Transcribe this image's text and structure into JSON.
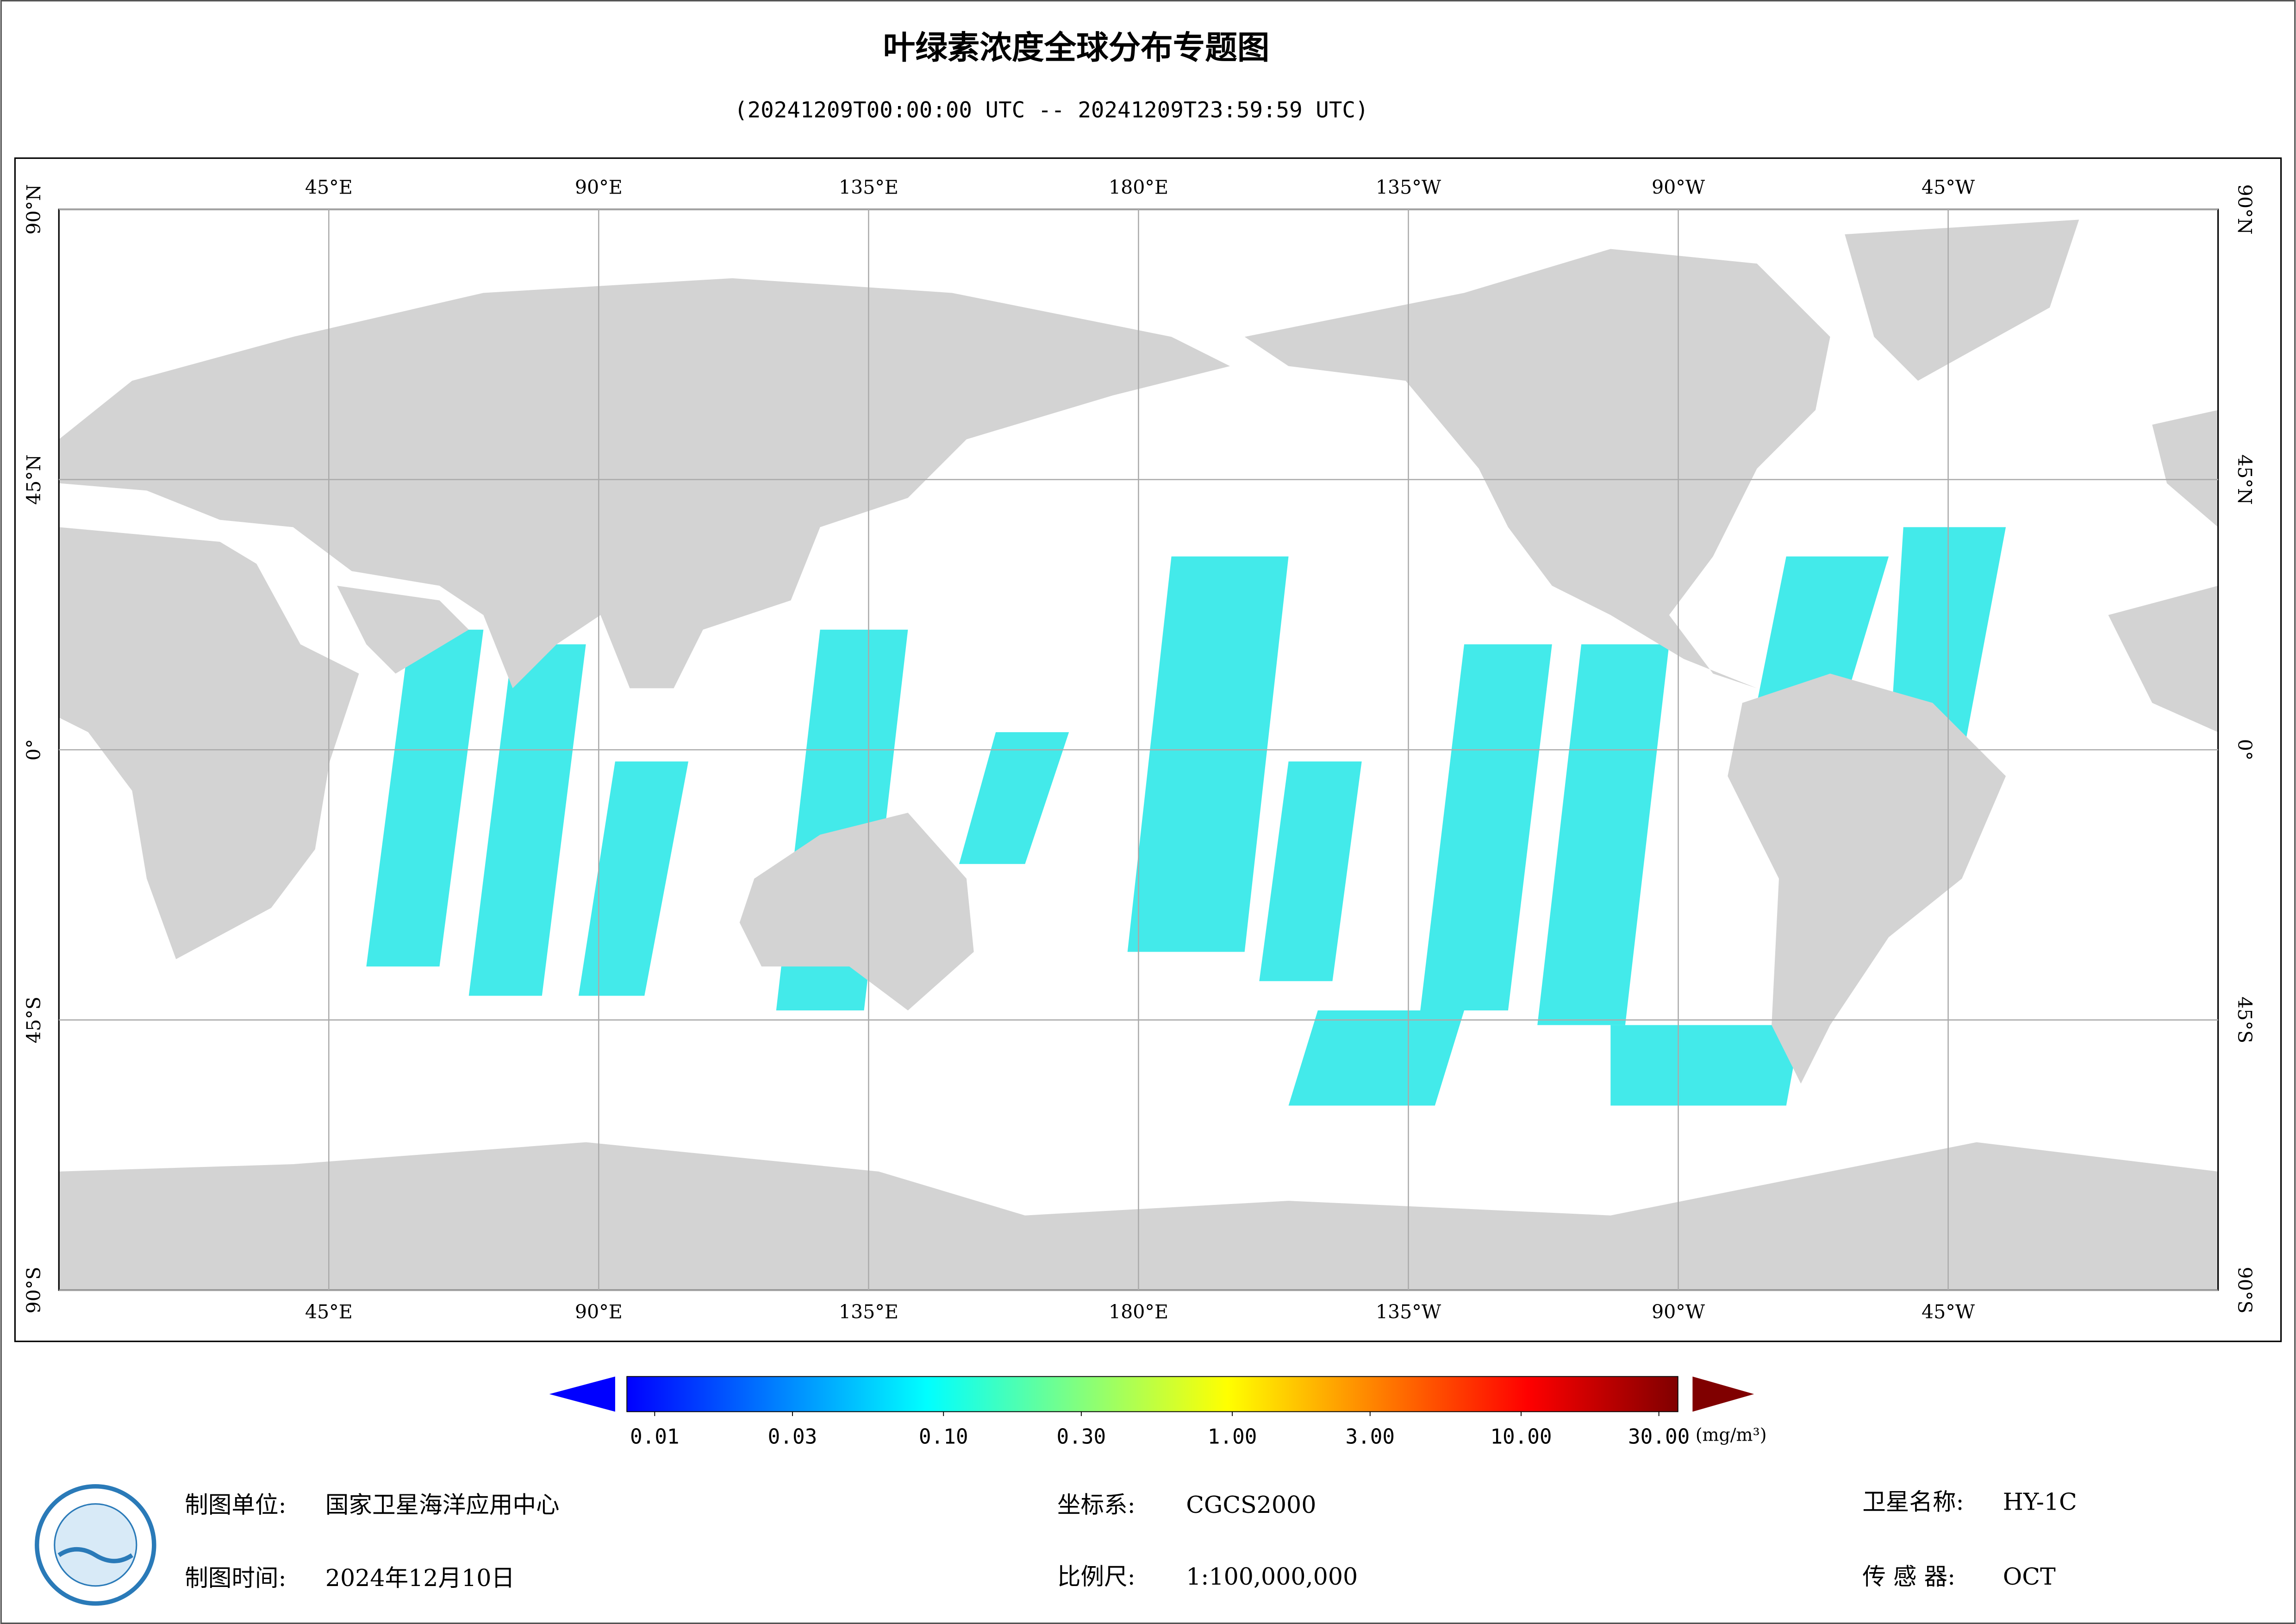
{
  "title": "叶绿素浓度全球分布专题图",
  "subtitle": "(20241209T00:00:00 UTC -- 20241209T23:59:59 UTC)",
  "map": {
    "lon_range": [
      0,
      360
    ],
    "lat_range": [
      -90,
      90
    ],
    "lon_ticks": [
      {
        "value": 45,
        "label": "45°E"
      },
      {
        "value": 90,
        "label": "90°E"
      },
      {
        "value": 135,
        "label": "135°E"
      },
      {
        "value": 180,
        "label": "180°E"
      },
      {
        "value": 225,
        "label": "135°W"
      },
      {
        "value": 270,
        "label": "90°W"
      },
      {
        "value": 315,
        "label": "45°W"
      }
    ],
    "lat_ticks": [
      {
        "value": 90,
        "label": "90°N"
      },
      {
        "value": 45,
        "label": "45°N"
      },
      {
        "value": 0,
        "label": "0°"
      },
      {
        "value": -45,
        "label": "45°S"
      },
      {
        "value": -90,
        "label": "90°S"
      }
    ]
  },
  "colorbar": {
    "log": true,
    "colors": [
      "#0000ff",
      "#0080ff",
      "#00ffff",
      "#80ff80",
      "#ffff00",
      "#ff8000",
      "#ff0000",
      "#800000"
    ],
    "ticks": [
      {
        "value": 0.01,
        "label": "0.01"
      },
      {
        "value": 0.03,
        "label": "0.03"
      },
      {
        "value": 0.1,
        "label": "0.10"
      },
      {
        "value": 0.3,
        "label": "0.30"
      },
      {
        "value": 1,
        "label": "1.00"
      },
      {
        "value": 3,
        "label": "3.00"
      },
      {
        "value": 10,
        "label": "10.00"
      },
      {
        "value": 30,
        "label": "30.00"
      }
    ],
    "unit": "(mg/m³)"
  },
  "footer": {
    "unit_label": "制图单位:",
    "unit_value": "国家卫星海洋应用中心",
    "date_label": "制图时间:",
    "date_value": "2024年12月10日",
    "crs_label": "坐标系:",
    "crs_value": "CGCS2000",
    "scale_label": "比例尺:",
    "scale_value": "1:100,000,000",
    "satellite_label": "卫星名称:",
    "satellite_value": "HY-1C",
    "sensor_label": "传 感 器:",
    "sensor_value": "OCT"
  }
}
